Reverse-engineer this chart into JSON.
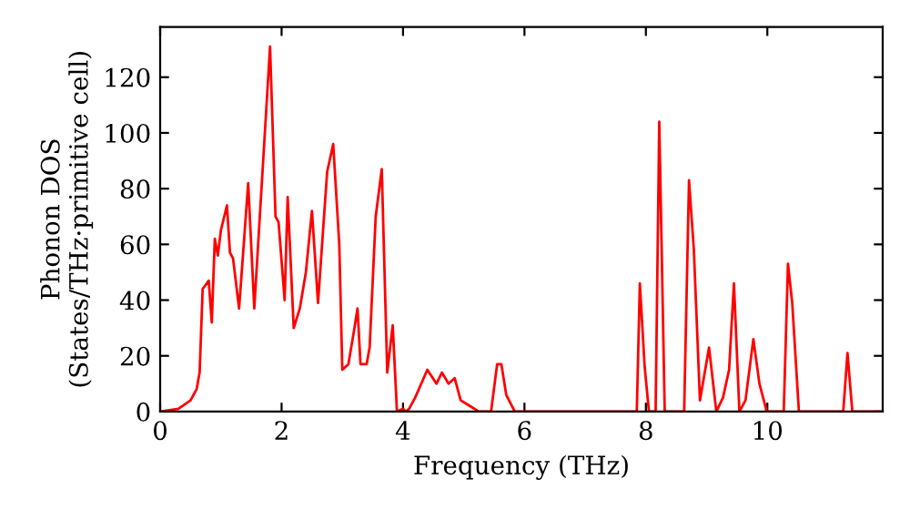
{
  "chart_data": {
    "type": "line",
    "xlabel": "Frequency (THz)",
    "ylabel": "Phonon DOS\n(States/THz·primitive cell)",
    "series": [
      {
        "color": "#ff0000",
        "x": [
          0,
          0.3,
          0.5,
          0.6,
          0.65,
          0.7,
          0.8,
          0.85,
          0.9,
          0.95,
          1.0,
          1.1,
          1.15,
          1.2,
          1.3,
          1.45,
          1.55,
          1.81,
          1.9,
          1.95,
          2.05,
          2.1,
          2.2,
          2.3,
          2.4,
          2.5,
          2.6,
          2.75,
          2.85,
          2.95,
          3.0,
          3.1,
          3.2,
          3.25,
          3.3,
          3.4,
          3.45,
          3.55,
          3.65,
          3.74,
          3.83,
          3.9,
          4.0,
          4.05,
          4.1,
          4.2,
          4.4,
          4.55,
          4.64,
          4.75,
          4.85,
          4.95,
          5.1,
          5.25,
          5.45,
          5.55,
          5.62,
          5.7,
          5.84,
          7.85,
          7.9,
          7.98,
          8.05,
          8.16,
          8.22,
          8.31,
          8.63,
          8.71,
          8.79,
          8.89,
          9.04,
          9.16,
          9.27,
          9.37,
          9.45,
          9.54,
          9.64,
          9.77,
          9.87,
          9.99,
          10.27,
          10.34,
          10.41,
          10.52,
          11.25,
          11.32,
          11.4,
          11.9
        ],
        "values": [
          0,
          1,
          4,
          8,
          14,
          44,
          47,
          32,
          62,
          56,
          65,
          74,
          57,
          55,
          37,
          82,
          37,
          131,
          70,
          68,
          40,
          77,
          30,
          37,
          50,
          72,
          39,
          86,
          96,
          60,
          15,
          17,
          30,
          37,
          17,
          17,
          23,
          70,
          87,
          14,
          31,
          0,
          1,
          0,
          1,
          5,
          15,
          10,
          14,
          10,
          12,
          4,
          2,
          0,
          0,
          17,
          17,
          6,
          0,
          0,
          46,
          16,
          0,
          0,
          104,
          0,
          0,
          83,
          58,
          4,
          23,
          0,
          5,
          15,
          46,
          0,
          4,
          26,
          10,
          0,
          0,
          53,
          39,
          0,
          0,
          21,
          0,
          0
        ]
      }
    ],
    "xlim": [
      0,
      11.9
    ],
    "ylim": [
      0,
      138
    ],
    "xticks": [
      0,
      2,
      4,
      6,
      8,
      10
    ],
    "yticks": [
      0,
      20,
      40,
      60,
      80,
      100,
      120
    ],
    "grid": false,
    "legend": false,
    "marker": "none",
    "line_style": "solid"
  }
}
